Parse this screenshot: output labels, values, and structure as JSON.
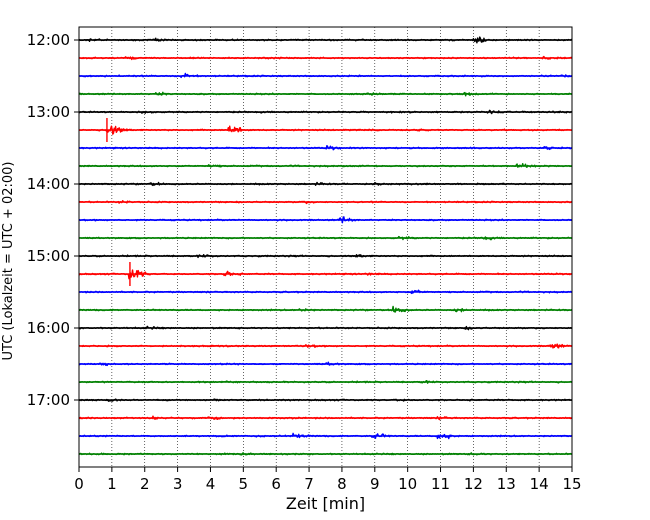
{
  "chart_data": {
    "type": "line",
    "xlabel": "Zeit  [min]",
    "ylabel": "UTC (Lokalzeit = UTC + 02:00)",
    "xlim": [
      0,
      15
    ],
    "x_ticks": [
      0,
      1,
      2,
      3,
      4,
      5,
      6,
      7,
      8,
      9,
      10,
      11,
      12,
      13,
      14,
      15
    ],
    "x_grid": "dotted vertical lines at each minute",
    "y_ticks": [
      "12:00",
      "13:00",
      "14:00",
      "15:00",
      "16:00",
      "17:00"
    ],
    "trace_interval_min": 15,
    "colors_cycle": [
      "#000000",
      "#ff0000",
      "#0000ff",
      "#008000"
    ],
    "traces": [
      {
        "start": "12:00",
        "color": "#000000",
        "events": [
          [
            0.3,
            0.4
          ],
          [
            2.3,
            0.4
          ],
          [
            12.1,
            1.0
          ]
        ]
      },
      {
        "start": "12:15",
        "color": "#ff0000",
        "events": [
          [
            1.5,
            0.3
          ],
          [
            14.2,
            0.5
          ]
        ]
      },
      {
        "start": "12:30",
        "color": "#0000ff",
        "events": [
          [
            3.2,
            1.0
          ],
          [
            14.7,
            0.3
          ]
        ]
      },
      {
        "start": "12:45",
        "color": "#008000",
        "events": [
          [
            2.4,
            0.5
          ],
          [
            8.8,
            0.4
          ],
          [
            11.7,
            0.6
          ]
        ]
      },
      {
        "start": "13:00",
        "color": "#000000",
        "events": [
          [
            2.0,
            0.3
          ],
          [
            12.5,
            0.7
          ]
        ]
      },
      {
        "start": "13:15",
        "color": "#ff0000",
        "events": [
          [
            0.9,
            2.0
          ],
          [
            4.6,
            1.7
          ],
          [
            10.3,
            0.4
          ]
        ]
      },
      {
        "start": "13:30",
        "color": "#0000ff",
        "events": [
          [
            7.6,
            0.5
          ],
          [
            14.2,
            0.3
          ]
        ]
      },
      {
        "start": "13:45",
        "color": "#008000",
        "events": [
          [
            4.0,
            0.4
          ],
          [
            13.4,
            0.8
          ]
        ]
      },
      {
        "start": "14:00",
        "color": "#000000",
        "events": [
          [
            2.2,
            0.4
          ],
          [
            7.2,
            0.3
          ],
          [
            9.0,
            0.3
          ]
        ]
      },
      {
        "start": "14:15",
        "color": "#ff0000",
        "events": [
          [
            1.3,
            0.3
          ],
          [
            6.8,
            0.3
          ]
        ]
      },
      {
        "start": "14:30",
        "color": "#0000ff",
        "events": [
          [
            8.0,
            1.0
          ]
        ]
      },
      {
        "start": "14:45",
        "color": "#008000",
        "events": [
          [
            9.8,
            0.4
          ],
          [
            12.3,
            0.4
          ]
        ]
      },
      {
        "start": "15:00",
        "color": "#000000",
        "events": [
          [
            3.7,
            0.4
          ],
          [
            8.5,
            0.3
          ]
        ]
      },
      {
        "start": "15:15",
        "color": "#ff0000",
        "events": [
          [
            1.6,
            2.2
          ],
          [
            4.5,
            0.9
          ],
          [
            8.8,
            0.3
          ]
        ]
      },
      {
        "start": "15:30",
        "color": "#0000ff",
        "events": [
          [
            10.2,
            0.6
          ]
        ]
      },
      {
        "start": "15:45",
        "color": "#008000",
        "events": [
          [
            6.8,
            0.5
          ],
          [
            9.6,
            1.1
          ],
          [
            11.5,
            0.6
          ]
        ]
      },
      {
        "start": "16:00",
        "color": "#000000",
        "events": [
          [
            2.1,
            0.3
          ],
          [
            11.8,
            0.3
          ]
        ]
      },
      {
        "start": "16:15",
        "color": "#ff0000",
        "events": [
          [
            7.0,
            0.3
          ],
          [
            14.4,
            1.0
          ]
        ]
      },
      {
        "start": "16:30",
        "color": "#0000ff",
        "events": [
          [
            0.7,
            0.5
          ],
          [
            7.6,
            0.4
          ]
        ]
      },
      {
        "start": "16:45",
        "color": "#008000",
        "events": [
          [
            10.5,
            0.3
          ]
        ]
      },
      {
        "start": "17:00",
        "color": "#000000",
        "events": [
          [
            1.0,
            0.4
          ],
          [
            4.0,
            0.4
          ],
          [
            9.7,
            0.3
          ]
        ]
      },
      {
        "start": "17:15",
        "color": "#ff0000",
        "events": [
          [
            2.2,
            0.5
          ],
          [
            4.0,
            0.7
          ],
          [
            11.0,
            0.3
          ]
        ]
      },
      {
        "start": "17:30",
        "color": "#0000ff",
        "events": [
          [
            6.6,
            0.6
          ],
          [
            9.0,
            1.0
          ],
          [
            11.0,
            1.3
          ]
        ]
      },
      {
        "start": "17:45",
        "color": "#008000",
        "events": [
          [
            5.0,
            0.3
          ],
          [
            12.0,
            0.3
          ]
        ]
      }
    ]
  }
}
